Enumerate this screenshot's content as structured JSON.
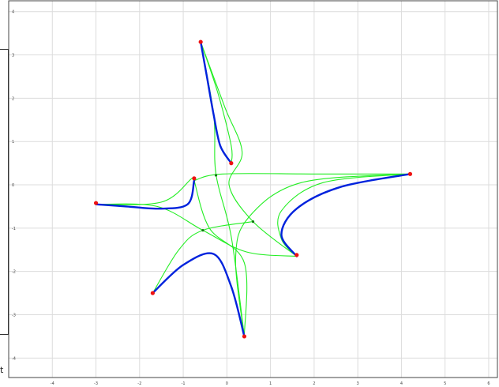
{
  "chart_data": {
    "type": "line",
    "title": "",
    "xlabel": "",
    "ylabel": "",
    "xlim": [
      -5,
      6.2
    ],
    "ylim": [
      -4.45,
      4.25
    ],
    "grid": true,
    "x_ticks": [
      "-4",
      "-3",
      "-2",
      "-1",
      "0",
      "1",
      "2",
      "3",
      "4",
      "5",
      "6"
    ],
    "y_ticks": [
      "4",
      "3",
      "2",
      "1",
      "0",
      "-1",
      "-2",
      "-3",
      "-4"
    ],
    "series": [
      {
        "role": "blue-curves",
        "color": "#0022dd",
        "segments": [
          [
            [
              -0.6,
              3.3
            ],
            [
              -0.45,
              2.45
            ],
            [
              -0.3,
              1.6
            ],
            [
              -0.15,
              0.9
            ],
            [
              0.1,
              0.5
            ]
          ],
          [
            [
              -3,
              -0.45
            ],
            [
              -2.3,
              -0.5
            ],
            [
              -1.55,
              -0.55
            ],
            [
              -0.9,
              -0.45
            ],
            [
              -0.75,
              0.1
            ]
          ],
          [
            [
              4.2,
              0.25
            ],
            [
              2.6,
              -0.05
            ],
            [
              1.6,
              -0.55
            ],
            [
              1.25,
              -1.15
            ],
            [
              1.6,
              -1.65
            ]
          ],
          [
            [
              -1.7,
              -2.5
            ],
            [
              -1.0,
              -1.85
            ],
            [
              -0.3,
              -1.6
            ],
            [
              0.1,
              -2.35
            ],
            [
              0.4,
              -3.5
            ]
          ]
        ]
      },
      {
        "role": "green-curves",
        "color": "#22ee22",
        "segments": [
          [
            [
              -0.6,
              3.3
            ],
            [
              -0.2,
              2.1
            ],
            [
              0.1,
              0.9
            ],
            [
              0.1,
              0.5
            ]
          ],
          [
            [
              -0.6,
              3.3
            ],
            [
              -0.3,
              1.6
            ],
            [
              -0.25,
              0.25
            ],
            [
              0.1,
              -1.2
            ],
            [
              0.4,
              -3.5
            ]
          ],
          [
            [
              -0.6,
              3.3
            ],
            [
              -0.05,
              1.8
            ],
            [
              0.35,
              0.75
            ],
            [
              0.05,
              0.0
            ],
            [
              0.6,
              -0.85
            ],
            [
              1.6,
              -1.65
            ]
          ],
          [
            [
              -3,
              -0.45
            ],
            [
              -1.5,
              -0.4
            ],
            [
              -0.8,
              0.15
            ],
            [
              -0.75,
              0.1
            ]
          ],
          [
            [
              -3,
              -0.45
            ],
            [
              -1.6,
              -0.5
            ],
            [
              -0.55,
              -1.05
            ],
            [
              0.45,
              -1.55
            ],
            [
              1.6,
              -1.65
            ]
          ],
          [
            [
              -0.75,
              0.1
            ],
            [
              -0.4,
              -1.0
            ],
            [
              0.4,
              -1.8
            ],
            [
              0.4,
              -3.5
            ]
          ],
          [
            [
              -0.75,
              0.1
            ],
            [
              -0.1,
              0.25
            ],
            [
              2.0,
              0.25
            ],
            [
              4.2,
              0.25
            ]
          ],
          [
            [
              4.2,
              0.25
            ],
            [
              1.7,
              0.05
            ],
            [
              0.5,
              -0.75
            ],
            [
              0.2,
              -1.7
            ],
            [
              0.4,
              -3.5
            ]
          ],
          [
            [
              4.2,
              0.25
            ],
            [
              2.2,
              0.05
            ],
            [
              1.25,
              -0.6
            ],
            [
              1.25,
              -1.25
            ],
            [
              1.6,
              -1.65
            ]
          ],
          [
            [
              -1.7,
              -2.5
            ],
            [
              -1.1,
              -1.5
            ],
            [
              -0.55,
              -1.05
            ],
            [
              0.6,
              -0.85
            ]
          ]
        ]
      }
    ],
    "points": {
      "red": [
        [
          -0.6,
          3.3
        ],
        [
          0.1,
          0.5
        ],
        [
          -0.75,
          0.15
        ],
        [
          -3,
          -0.42
        ],
        [
          4.2,
          0.25
        ],
        [
          1.6,
          -1.62
        ],
        [
          -1.7,
          -2.5
        ],
        [
          0.4,
          -3.5
        ]
      ],
      "green": [
        [
          -0.25,
          0.22
        ],
        [
          -0.55,
          -1.05
        ],
        [
          0.6,
          -0.85
        ]
      ]
    }
  },
  "side_text": "t"
}
